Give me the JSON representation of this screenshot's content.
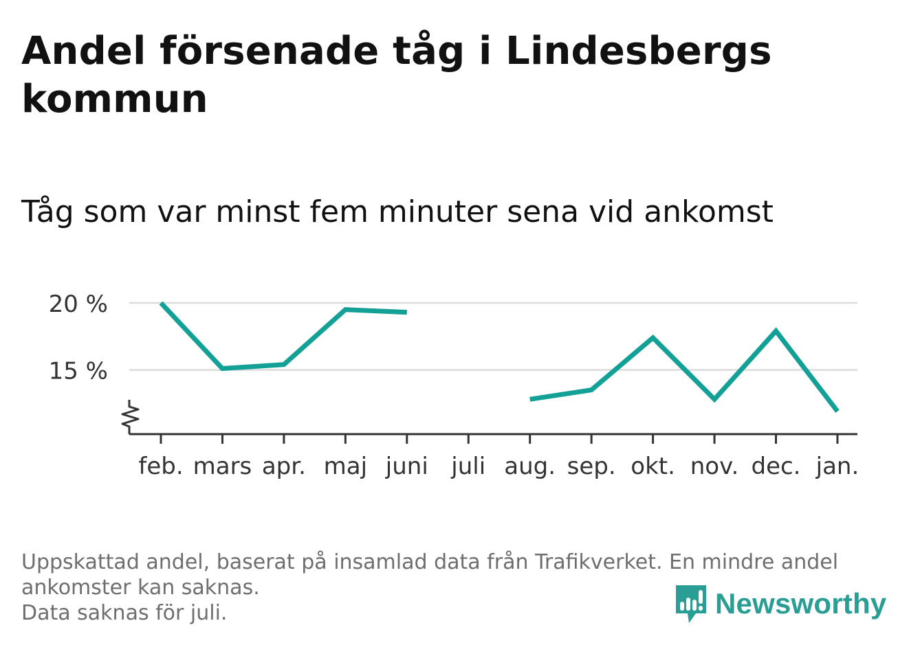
{
  "title": "Andel försenade tåg i Lindesbergs kommun",
  "subtitle": "Tåg som var minst fem minuter sena vid ankomst",
  "footer": {
    "line1": "Uppskattad andel, baserat på insamlad data från Trafikverket. En mindre andel ankomster kan saknas.",
    "line2": "Data saknas för juli."
  },
  "brand": {
    "name": "Newsworthy",
    "color": "#2a9d94",
    "icon": "newsworthy-logo-icon"
  },
  "colors": {
    "line": "#13a096",
    "grid": "#dcdcdc",
    "axis": "#333333",
    "tick_text": "#333333"
  },
  "chart_data": {
    "type": "line",
    "categories": [
      "feb.",
      "mars",
      "apr.",
      "maj",
      "juni",
      "juli",
      "aug.",
      "sep.",
      "okt.",
      "nov.",
      "dec.",
      "jan."
    ],
    "series": [
      {
        "values": [
          20.0,
          15.1,
          15.4,
          19.5,
          19.3,
          null,
          12.8,
          13.5,
          17.4,
          12.8,
          17.9,
          11.9
        ]
      }
    ],
    "yticks": [
      15,
      20
    ],
    "ytick_labels": [
      "15 %",
      "20 %"
    ],
    "ylim": [
      10.2,
      20.0
    ],
    "axis_break": true,
    "grid": true,
    "legend": false,
    "xlabel": "",
    "ylabel": ""
  }
}
